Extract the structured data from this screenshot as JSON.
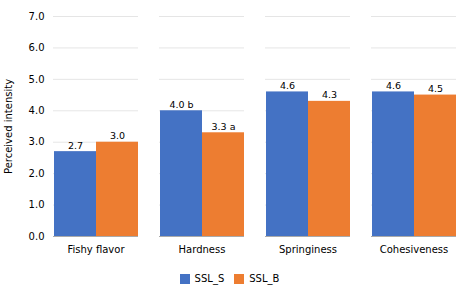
{
  "chart_data": {
    "type": "bar",
    "categories": [
      "Fishy flavor",
      "Hardness",
      "Springiness",
      "Cohesiveness"
    ],
    "series": [
      {
        "name": "SSL_S",
        "color": "#4472C4",
        "values": [
          2.7,
          4.0,
          4.6,
          4.6
        ],
        "value_labels": [
          "2.7",
          "4.0 b",
          "4.6",
          "4.6"
        ]
      },
      {
        "name": "SSL_B",
        "color": "#ED7D31",
        "values": [
          3.0,
          3.3,
          4.3,
          4.5
        ],
        "value_labels": [
          "3.0",
          "3.3 a",
          "4.3",
          "4.5"
        ]
      }
    ],
    "ylabel": "Perceived intensity",
    "ylim": [
      0,
      7.0
    ],
    "yticks": [
      {
        "value": 0.0,
        "label": "0.0"
      },
      {
        "value": 1.0,
        "label": "1.0"
      },
      {
        "value": 2.0,
        "label": "2.0"
      },
      {
        "value": 3.0,
        "label": "3.0"
      },
      {
        "value": 4.0,
        "label": "4.0"
      },
      {
        "value": 5.0,
        "label": "5.0"
      },
      {
        "value": 6.0,
        "label": "6.0"
      },
      {
        "value": 7.0,
        "label": "7.0"
      }
    ],
    "grid": true,
    "legend": "bottom",
    "data_labels": true
  }
}
